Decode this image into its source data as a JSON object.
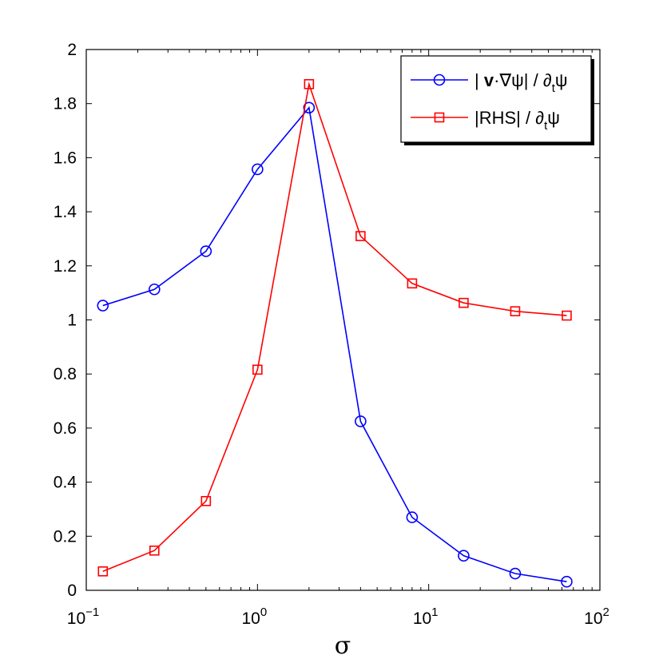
{
  "chart_data": {
    "type": "line",
    "xscale": "log",
    "xlim": [
      0.1,
      100
    ],
    "ylim": [
      0,
      2
    ],
    "xlabel": "σ",
    "ylabel": "",
    "title": "",
    "grid": false,
    "legend_position": "top-right",
    "yticks": [
      0,
      0.2,
      0.4,
      0.6,
      0.8,
      1,
      1.2,
      1.4,
      1.6,
      1.8,
      2
    ],
    "ytick_labels": [
      "0",
      "0.2",
      "0.4",
      "0.6",
      "0.8",
      "1",
      "1.2",
      "1.4",
      "1.6",
      "1.8",
      "2"
    ],
    "xticks": [
      0.1,
      1,
      10,
      100
    ],
    "xtick_labels": [
      {
        "base": "10",
        "exp": "−1"
      },
      {
        "base": "10",
        "exp": "0"
      },
      {
        "base": "10",
        "exp": "1"
      },
      {
        "base": "10",
        "exp": "2"
      }
    ],
    "series": [
      {
        "legend": {
          "pre": "| ",
          "bold": "v",
          "mid": "·∇ψ| / ∂",
          "sub": "t",
          "post": "ψ"
        },
        "color": "#0000ff",
        "marker": "circle",
        "x": [
          0.125,
          0.25,
          0.5,
          1,
          2,
          4,
          8,
          16,
          32,
          64
        ],
        "values": [
          1.053,
          1.113,
          1.254,
          1.557,
          1.785,
          0.625,
          0.27,
          0.128,
          0.062,
          0.032
        ]
      },
      {
        "legend": {
          "pre": "",
          "bold": "",
          "mid": "|RHS| / ∂",
          "sub": "t",
          "post": "ψ"
        },
        "color": "#ff0000",
        "marker": "square",
        "x": [
          0.125,
          0.25,
          0.5,
          1,
          2,
          4,
          8,
          16,
          32,
          64
        ],
        "values": [
          0.07,
          0.147,
          0.33,
          0.816,
          1.872,
          1.31,
          1.135,
          1.063,
          1.032,
          1.016
        ]
      }
    ]
  }
}
